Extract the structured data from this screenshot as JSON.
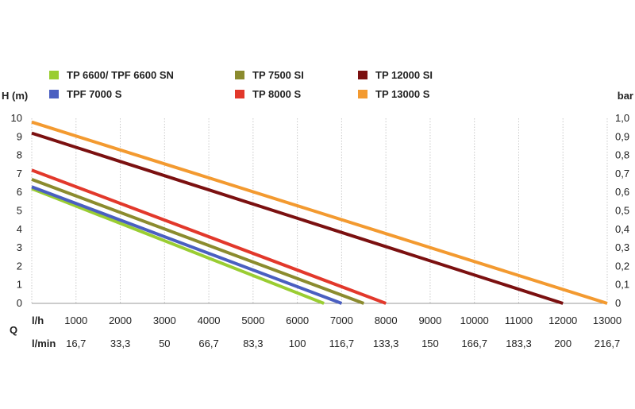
{
  "chart_data": {
    "type": "line",
    "left_axis_title": "H (m)",
    "right_axis_title": "bar",
    "bottom_axis_title": "Q",
    "y_left_ticks": [
      "0",
      "1",
      "2",
      "3",
      "4",
      "5",
      "6",
      "7",
      "8",
      "9",
      "10"
    ],
    "y_right_ticks": [
      "0",
      "0,1",
      "0,2",
      "0,3",
      "0,4",
      "0,5",
      "0,6",
      "0,7",
      "0,8",
      "0,9",
      "1,0"
    ],
    "ylim": [
      0,
      10
    ],
    "xlim": [
      0,
      13000
    ],
    "x_row_lh_unit": "l/h",
    "x_row_lh_ticks": [
      "1000",
      "2000",
      "3000",
      "4000",
      "5000",
      "6000",
      "7000",
      "8000",
      "9000",
      "10000",
      "11000",
      "12000",
      "13000"
    ],
    "x_row_lmin_unit": "l/min",
    "x_row_lmin_ticks": [
      "16,7",
      "33,3",
      "50",
      "66,7",
      "83,3",
      "100",
      "116,7",
      "133,3",
      "150",
      "166,7",
      "183,3",
      "200",
      "216,7"
    ],
    "grid": "vertical",
    "legend_position": "top",
    "series": [
      {
        "name": "TP 6600/ TPF 6600 SN",
        "color": "#9acd32",
        "points": [
          [
            0,
            6.2
          ],
          [
            6600,
            0
          ]
        ]
      },
      {
        "name": "TP 7500 SI",
        "color": "#8b8b2e",
        "points": [
          [
            0,
            6.7
          ],
          [
            7500,
            0
          ]
        ]
      },
      {
        "name": "TP 12000 SI",
        "color": "#7b1010",
        "points": [
          [
            0,
            9.2
          ],
          [
            12000,
            0
          ]
        ]
      },
      {
        "name": "TPF 7000 S",
        "color": "#4a5fc1",
        "points": [
          [
            0,
            6.3
          ],
          [
            7000,
            0
          ]
        ]
      },
      {
        "name": "TP 8000 S",
        "color": "#e2382b",
        "points": [
          [
            0,
            7.2
          ],
          [
            8000,
            0
          ]
        ]
      },
      {
        "name": "TP 13000 S",
        "color": "#f39a30",
        "points": [
          [
            0,
            9.8
          ],
          [
            13000,
            0
          ]
        ]
      }
    ]
  }
}
